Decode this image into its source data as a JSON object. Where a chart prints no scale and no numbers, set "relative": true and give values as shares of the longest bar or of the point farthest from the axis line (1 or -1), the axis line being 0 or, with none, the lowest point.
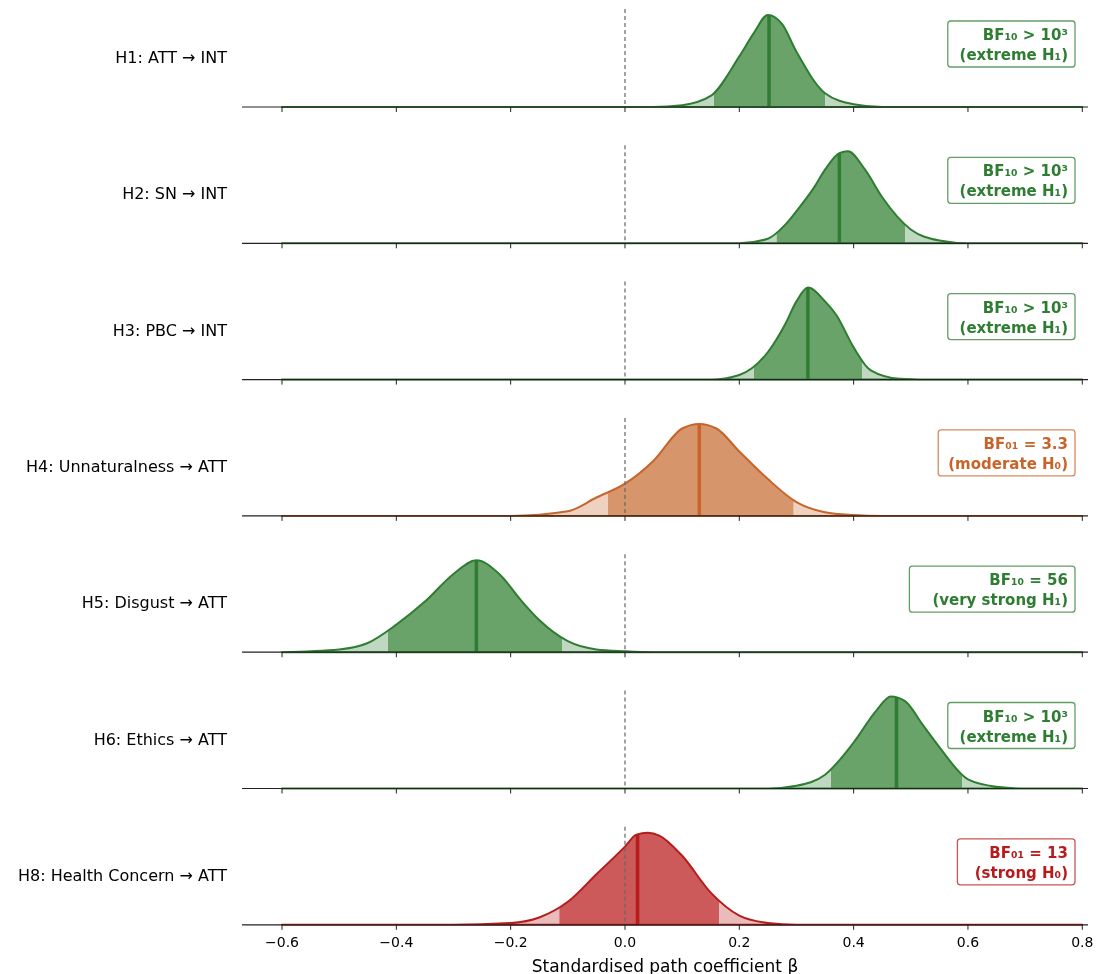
{
  "chart_data": [
    {
      "type": "area",
      "ylabel": "H1: ATT → INT",
      "relative": true,
      "xlim": [
        -0.67,
        0.81
      ],
      "xticks": [
        {
          "value": -0.6,
          "label": null
        },
        {
          "value": -0.4,
          "label": null
        },
        {
          "value": -0.2,
          "label": null
        },
        {
          "value": 0,
          "label": null
        },
        {
          "value": 0.2,
          "label": null
        },
        {
          "value": 0.4,
          "label": null
        },
        {
          "value": 0.6,
          "label": null
        },
        {
          "value": 0.8,
          "label": null
        }
      ],
      "tick_labels": false,
      "series": [
        {
          "color": "#2e7d32",
          "x": [
            -0.6,
            0.05,
            0.1,
            0.15,
            0.2,
            0.225,
            0.25,
            0.275,
            0.3,
            0.35,
            0.4,
            0.45,
            0.8
          ],
          "values": [
            0,
            0,
            0.02,
            0.12,
            0.55,
            0.8,
            1,
            0.9,
            0.6,
            0.15,
            0.03,
            0,
            0
          ]
        }
      ],
      "bands": [
        {
          "axis": "x",
          "from": 0.155,
          "to": 0.35,
          "color": "#6aa36a"
        }
      ],
      "ref_lines": [
        {
          "axis": "x",
          "value": 0,
          "line_style": "dashed",
          "color": "#666666"
        },
        {
          "axis": "x",
          "value": 0.252,
          "line_style": "solid",
          "color": "#2e7d32"
        }
      ],
      "annotations": [
        "BF₁₀ > 10³",
        "(extreme H₁)"
      ]
    },
    {
      "type": "area",
      "ylabel": "H2: SN → INT",
      "relative": true,
      "xlim": [
        -0.67,
        0.81
      ],
      "xticks": [
        {
          "value": -0.6,
          "label": null
        },
        {
          "value": -0.4,
          "label": null
        },
        {
          "value": -0.2,
          "label": null
        },
        {
          "value": 0,
          "label": null
        },
        {
          "value": 0.2,
          "label": null
        },
        {
          "value": 0.4,
          "label": null
        },
        {
          "value": 0.6,
          "label": null
        },
        {
          "value": 0.8,
          "label": null
        }
      ],
      "tick_labels": false,
      "series": [
        {
          "color": "#2e7d32",
          "x": [
            -0.6,
            0.2,
            0.25,
            0.28,
            0.3,
            0.33,
            0.35,
            0.375,
            0.39,
            0.42,
            0.45,
            0.5,
            0.55,
            0.6,
            0.8
          ],
          "values": [
            0,
            0,
            0.05,
            0.2,
            0.35,
            0.6,
            0.8,
            0.98,
            1,
            0.8,
            0.5,
            0.15,
            0.03,
            0,
            0
          ]
        }
      ],
      "bands": [
        {
          "axis": "x",
          "from": 0.265,
          "to": 0.49,
          "color": "#6aa36a"
        }
      ],
      "ref_lines": [
        {
          "axis": "x",
          "value": 0,
          "line_style": "dashed",
          "color": "#666666"
        },
        {
          "axis": "x",
          "value": 0.375,
          "line_style": "solid",
          "color": "#2e7d32"
        }
      ],
      "annotations": [
        "BF₁₀ > 10³",
        "(extreme H₁)"
      ]
    },
    {
      "type": "area",
      "ylabel": "H3: PBC → INT",
      "relative": true,
      "xlim": [
        -0.67,
        0.81
      ],
      "xticks": [
        {
          "value": -0.6,
          "label": null
        },
        {
          "value": -0.4,
          "label": null
        },
        {
          "value": -0.2,
          "label": null
        },
        {
          "value": 0,
          "label": null
        },
        {
          "value": 0.2,
          "label": null
        },
        {
          "value": 0.4,
          "label": null
        },
        {
          "value": 0.6,
          "label": null
        },
        {
          "value": 0.8,
          "label": null
        }
      ],
      "tick_labels": false,
      "series": [
        {
          "color": "#2e7d32",
          "x": [
            -0.6,
            0.15,
            0.2,
            0.25,
            0.28,
            0.3,
            0.32,
            0.35,
            0.37,
            0.4,
            0.43,
            0.48,
            0.55,
            0.8
          ],
          "values": [
            0,
            0,
            0.05,
            0.3,
            0.6,
            0.85,
            1,
            0.85,
            0.7,
            0.35,
            0.1,
            0.01,
            0,
            0
          ]
        }
      ],
      "bands": [
        {
          "axis": "x",
          "from": 0.225,
          "to": 0.415,
          "color": "#6aa36a"
        }
      ],
      "ref_lines": [
        {
          "axis": "x",
          "value": 0,
          "line_style": "dashed",
          "color": "#666666"
        },
        {
          "axis": "x",
          "value": 0.32,
          "line_style": "solid",
          "color": "#2e7d32"
        }
      ],
      "annotations": [
        "BF₁₀ > 10³",
        "(extreme H₁)"
      ]
    },
    {
      "type": "area",
      "ylabel": "H4: Unnaturalness → ATT",
      "relative": true,
      "xlim": [
        -0.67,
        0.81
      ],
      "xticks": [
        {
          "value": -0.6,
          "label": null
        },
        {
          "value": -0.4,
          "label": null
        },
        {
          "value": -0.2,
          "label": null
        },
        {
          "value": 0,
          "label": null
        },
        {
          "value": 0.2,
          "label": null
        },
        {
          "value": 0.4,
          "label": null
        },
        {
          "value": 0.6,
          "label": null
        },
        {
          "value": 0.8,
          "label": null
        }
      ],
      "tick_labels": false,
      "series": [
        {
          "color": "#c8642a",
          "x": [
            -0.6,
            -0.2,
            -0.1,
            -0.05,
            0,
            0.05,
            0.1,
            0.13,
            0.16,
            0.2,
            0.25,
            0.3,
            0.35,
            0.4,
            0.45,
            0.8
          ],
          "values": [
            0,
            0,
            0.05,
            0.2,
            0.35,
            0.6,
            0.95,
            1,
            0.95,
            0.7,
            0.4,
            0.15,
            0.04,
            0.01,
            0,
            0
          ]
        }
      ],
      "bands": [
        {
          "axis": "x",
          "from": -0.03,
          "to": 0.295,
          "color": "#d6956a"
        }
      ],
      "ref_lines": [
        {
          "axis": "x",
          "value": 0,
          "line_style": "dashed",
          "color": "#666666"
        },
        {
          "axis": "x",
          "value": 0.13,
          "line_style": "solid",
          "color": "#c8642a"
        }
      ],
      "annotations": [
        "BF₀₁ = 3.3",
        "(moderate H₀)"
      ]
    },
    {
      "type": "area",
      "ylabel": "H5: Disgust → ATT",
      "relative": true,
      "xlim": [
        -0.67,
        0.81
      ],
      "xticks": [
        {
          "value": -0.6,
          "label": null
        },
        {
          "value": -0.4,
          "label": null
        },
        {
          "value": -0.2,
          "label": null
        },
        {
          "value": 0,
          "label": null
        },
        {
          "value": 0.2,
          "label": null
        },
        {
          "value": 0.4,
          "label": null
        },
        {
          "value": 0.6,
          "label": null
        },
        {
          "value": 0.8,
          "label": null
        }
      ],
      "tick_labels": false,
      "series": [
        {
          "color": "#2e7d32",
          "x": [
            -0.6,
            -0.5,
            -0.45,
            -0.4,
            -0.35,
            -0.3,
            -0.26,
            -0.22,
            -0.18,
            -0.15,
            -0.1,
            -0.05,
            0,
            0.05,
            0.8
          ],
          "values": [
            0,
            0.03,
            0.1,
            0.3,
            0.55,
            0.85,
            1,
            0.85,
            0.55,
            0.35,
            0.12,
            0.03,
            0.01,
            0,
            0
          ]
        }
      ],
      "bands": [
        {
          "axis": "x",
          "from": -0.415,
          "to": -0.11,
          "color": "#6aa36a"
        }
      ],
      "ref_lines": [
        {
          "axis": "x",
          "value": 0,
          "line_style": "dashed",
          "color": "#666666"
        },
        {
          "axis": "x",
          "value": -0.26,
          "line_style": "solid",
          "color": "#2e7d32"
        }
      ],
      "annotations": [
        "BF₁₀ = 56",
        "(very strong H₁)"
      ]
    },
    {
      "type": "area",
      "ylabel": "H6: Ethics → ATT",
      "relative": true,
      "xlim": [
        -0.67,
        0.81
      ],
      "xticks": [
        {
          "value": -0.6,
          "label": null
        },
        {
          "value": -0.4,
          "label": null
        },
        {
          "value": -0.2,
          "label": null
        },
        {
          "value": 0,
          "label": null
        },
        {
          "value": 0.2,
          "label": null
        },
        {
          "value": 0.4,
          "label": null
        },
        {
          "value": 0.6,
          "label": null
        },
        {
          "value": 0.8,
          "label": null
        }
      ],
      "tick_labels": false,
      "series": [
        {
          "color": "#2e7d32",
          "x": [
            -0.6,
            0.25,
            0.3,
            0.35,
            0.4,
            0.44,
            0.465,
            0.49,
            0.52,
            0.55,
            0.6,
            0.65,
            0.7,
            0.8
          ],
          "values": [
            0,
            0,
            0.03,
            0.15,
            0.5,
            0.85,
            1,
            0.95,
            0.7,
            0.45,
            0.1,
            0.02,
            0,
            0
          ]
        }
      ],
      "bands": [
        {
          "axis": "x",
          "from": 0.36,
          "to": 0.59,
          "color": "#6aa36a"
        }
      ],
      "ref_lines": [
        {
          "axis": "x",
          "value": 0,
          "line_style": "dashed",
          "color": "#666666"
        },
        {
          "axis": "x",
          "value": 0.475,
          "line_style": "solid",
          "color": "#2e7d32"
        }
      ],
      "annotations": [
        "BF₁₀ > 10³",
        "(extreme H₁)"
      ]
    },
    {
      "type": "area",
      "ylabel": "H8: Health Concern → ATT",
      "xlabel": "Standardised path coefficient β",
      "relative": true,
      "xlim": [
        -0.67,
        0.81
      ],
      "xticks": [
        {
          "value": -0.6,
          "label": "−0.6"
        },
        {
          "value": -0.4,
          "label": "−0.4"
        },
        {
          "value": -0.2,
          "label": "−0.2"
        },
        {
          "value": 0,
          "label": "0.0"
        },
        {
          "value": 0.2,
          "label": "0.2"
        },
        {
          "value": 0.4,
          "label": "0.4"
        },
        {
          "value": 0.6,
          "label": "0.6"
        },
        {
          "value": 0.8,
          "label": "0.8"
        }
      ],
      "tick_labels": "x",
      "series": [
        {
          "color": "#b71c1c",
          "x": [
            -0.6,
            -0.3,
            -0.2,
            -0.15,
            -0.1,
            -0.05,
            0,
            0.02,
            0.04,
            0.06,
            0.1,
            0.15,
            0.2,
            0.25,
            0.3,
            0.8
          ],
          "values": [
            0,
            0,
            0.02,
            0.08,
            0.25,
            0.55,
            0.85,
            0.98,
            1,
            0.97,
            0.75,
            0.35,
            0.1,
            0.02,
            0,
            0
          ]
        }
      ],
      "bands": [
        {
          "axis": "x",
          "from": -0.115,
          "to": 0.165,
          "color": "#cc5a5a"
        }
      ],
      "ref_lines": [
        {
          "axis": "x",
          "value": 0,
          "line_style": "dashed",
          "color": "#666666"
        },
        {
          "axis": "x",
          "value": 0.022,
          "line_style": "solid",
          "color": "#b71c1c"
        }
      ],
      "annotations": [
        "BF₀₁ = 13",
        "(strong H₀)"
      ]
    }
  ]
}
